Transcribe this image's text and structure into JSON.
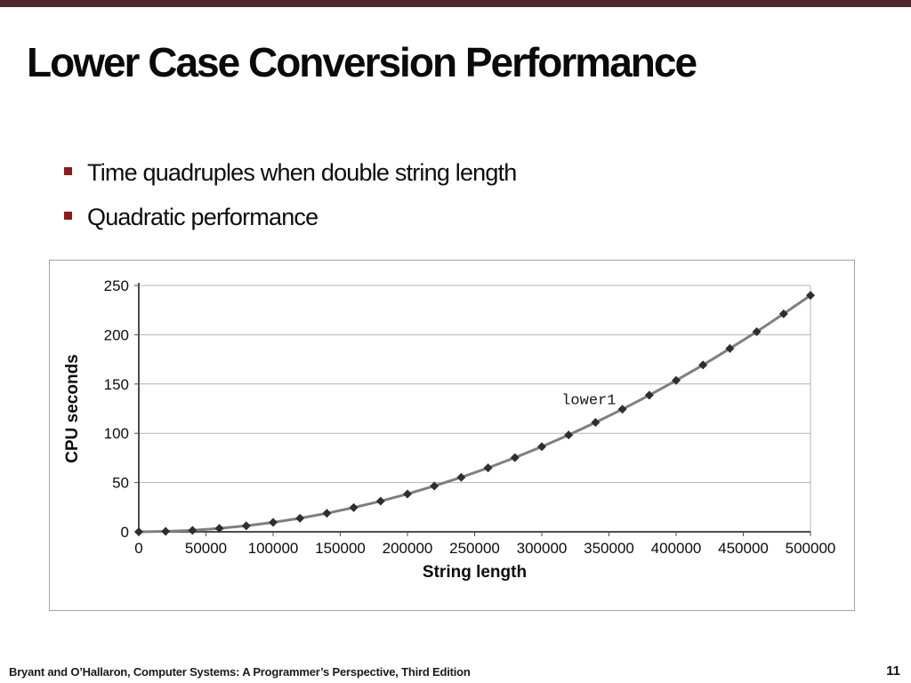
{
  "slide": {
    "title": "Lower Case Conversion Performance",
    "bullets": [
      "Time quadruples when double string length",
      "Quadratic performance"
    ],
    "footer": "Bryant and O’Hallaron, Computer Systems: A Programmer’s Perspective, Third Edition",
    "page_number": "11",
    "colors": {
      "top_bar": "#4f272b",
      "bullet": "#8e1a1a"
    }
  },
  "chart_data": {
    "type": "line",
    "title": "",
    "xlabel": "String length",
    "ylabel": "CPU seconds",
    "xlim": [
      0,
      500000
    ],
    "ylim": [
      0,
      250
    ],
    "x_ticks": [
      0,
      50000,
      100000,
      150000,
      200000,
      250000,
      300000,
      350000,
      400000,
      450000,
      500000
    ],
    "y_ticks": [
      0,
      50,
      100,
      150,
      200,
      250
    ],
    "grid": "horizontal",
    "legend_position": "inline-label",
    "series": [
      {
        "name": "lower1",
        "marker": "diamond",
        "x": [
          0,
          20000,
          40000,
          60000,
          80000,
          100000,
          120000,
          140000,
          160000,
          180000,
          200000,
          220000,
          240000,
          260000,
          280000,
          300000,
          320000,
          340000,
          360000,
          380000,
          400000,
          420000,
          440000,
          460000,
          480000,
          500000
        ],
        "y": [
          0,
          0.4,
          1.5,
          3.5,
          6.1,
          9.6,
          13.8,
          18.8,
          24.6,
          31.1,
          38.4,
          46.5,
          55.3,
          64.9,
          75.3,
          86.4,
          98.3,
          111.0,
          124.4,
          138.6,
          153.6,
          169.3,
          186.0,
          203.1,
          221.2,
          240.0
        ]
      }
    ],
    "series_label": {
      "text": "lower1",
      "data_x": 335000,
      "data_y": 135
    },
    "colors": {
      "line": "#7f7f7f",
      "marker": "#2e2e2e",
      "grid": "#b3b3b3",
      "axis": "#4d4d4d",
      "tick_text": "#0d0d0d",
      "border": "#b3b3b3"
    }
  }
}
